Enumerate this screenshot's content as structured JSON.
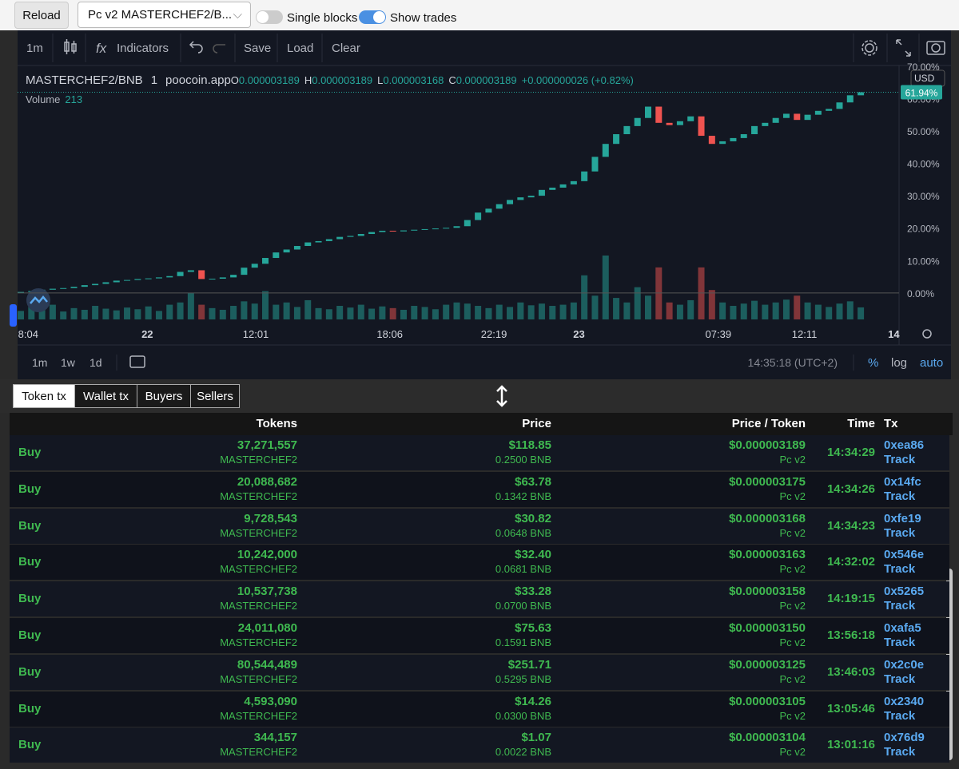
{
  "toolbar": {
    "reload": "Reload",
    "pair_select": "Pc v2 MASTERCHEF2/B...",
    "single_blocks": "Single blocks",
    "show_trades": "Show trades"
  },
  "chart_toolbar": {
    "interval": "1m",
    "indicators": "Indicators",
    "save": "Save",
    "load": "Load",
    "clear": "Clear"
  },
  "chart_data": {
    "type": "candlestick",
    "symbol": "MASTERCHEF2/BNB",
    "interval": "1",
    "source": "poocoin.app",
    "ohlc": [
      {
        "key": "O",
        "value": "0.000003189"
      },
      {
        "key": "H",
        "value": "0.000003189"
      },
      {
        "key": "L",
        "value": "0.000003168"
      },
      {
        "key": "C",
        "value": "0.000003189"
      }
    ],
    "change": "+0.000000026 (+0.82%)",
    "volume_label": "Volume",
    "currency": "USD",
    "last_label": "61.94%",
    "up_color": "#26a69a",
    "down_color": "#ef5350",
    "candles": [
      [
        0,
        0.3
      ],
      [
        0.3,
        0.6
      ],
      [
        0.6,
        1.0
      ],
      [
        1.0,
        1.3
      ],
      [
        1.3,
        1.5
      ],
      [
        1.5,
        1.9
      ],
      [
        1.9,
        2.4
      ],
      [
        2.4,
        2.8
      ],
      [
        2.8,
        3.3
      ],
      [
        3.3,
        3.8
      ],
      [
        3.8,
        4.0
      ],
      [
        4.0,
        4.3
      ],
      [
        4.3,
        4.5
      ],
      [
        4.5,
        4.8
      ],
      [
        4.8,
        5.2
      ],
      [
        5.2,
        6.5
      ],
      [
        6.5,
        7.0
      ],
      [
        7.0,
        4.3
      ],
      [
        4.3,
        4.4
      ],
      [
        4.4,
        4.8
      ],
      [
        4.8,
        5.6
      ],
      [
        5.6,
        7.8
      ],
      [
        7.8,
        9.0
      ],
      [
        9.0,
        10.8
      ],
      [
        10.8,
        12.5
      ],
      [
        12.5,
        13.4
      ],
      [
        13.4,
        14.5
      ],
      [
        14.5,
        15.6
      ],
      [
        15.6,
        16.0
      ],
      [
        16.0,
        16.6
      ],
      [
        16.6,
        17.3
      ],
      [
        17.3,
        17.6
      ],
      [
        17.6,
        18.2
      ],
      [
        18.2,
        18.8
      ],
      [
        18.8,
        19.2
      ],
      [
        19.2,
        19.0
      ],
      [
        19.0,
        19.3
      ],
      [
        19.3,
        19.5
      ],
      [
        19.5,
        19.7
      ],
      [
        19.7,
        19.9
      ],
      [
        19.9,
        20.1
      ],
      [
        20.1,
        20.6
      ],
      [
        20.6,
        22.5
      ],
      [
        22.5,
        24.8
      ],
      [
        24.8,
        26.0
      ],
      [
        26.0,
        27.4
      ],
      [
        27.4,
        28.7
      ],
      [
        28.7,
        29.5
      ],
      [
        29.5,
        30.0
      ],
      [
        30.0,
        31.8
      ],
      [
        31.8,
        32.5
      ],
      [
        32.5,
        33.5
      ],
      [
        33.5,
        34.5
      ],
      [
        34.5,
        37.5
      ],
      [
        37.5,
        42.0
      ],
      [
        42.0,
        46.0
      ],
      [
        46.0,
        49.0
      ],
      [
        49.0,
        51.5
      ],
      [
        51.5,
        54.0
      ],
      [
        54.0,
        57.5
      ],
      [
        57.5,
        52.5
      ],
      [
        52.5,
        51.8
      ],
      [
        51.8,
        53.0
      ],
      [
        53.0,
        54.5
      ],
      [
        54.5,
        48.5
      ],
      [
        48.5,
        46.0
      ],
      [
        46.0,
        46.8
      ],
      [
        46.8,
        47.8
      ],
      [
        47.8,
        49.0
      ],
      [
        49.0,
        51.5
      ],
      [
        51.5,
        52.5
      ],
      [
        52.5,
        54.0
      ],
      [
        54.0,
        55.3
      ],
      [
        55.3,
        53.4
      ],
      [
        53.4,
        55.0
      ],
      [
        55.0,
        56.2
      ],
      [
        56.2,
        56.8
      ],
      [
        56.8,
        58.8
      ],
      [
        58.8,
        61.0
      ],
      [
        61.0,
        61.94
      ]
    ],
    "volume": [
      150,
      220,
      180,
      260,
      140,
      200,
      170,
      240,
      190,
      160,
      210,
      180,
      230,
      150,
      260,
      300,
      470,
      260,
      200,
      170,
      240,
      320,
      280,
      500,
      260,
      300,
      220,
      340,
      200,
      180,
      240,
      210,
      260,
      190,
      230,
      200,
      170,
      240,
      220,
      180,
      260,
      300,
      280,
      240,
      200,
      260,
      220,
      300,
      250,
      280,
      240,
      260,
      300,
      780,
      420,
      1130,
      380,
      300,
      570,
      420,
      920,
      300,
      260,
      340,
      920,
      520,
      300,
      240,
      280,
      330,
      260,
      300,
      350,
      420,
      300,
      260,
      220,
      280,
      320,
      213
    ],
    "xlim": [
      -0.3,
      82.6
    ],
    "ylim": [
      -9.4,
      70.2
    ],
    "xticks": [
      {
        "value": 0.7,
        "label": "8:04"
      },
      {
        "value": 11.9,
        "label": "22"
      },
      {
        "value": 22.1,
        "label": "12:01"
      },
      {
        "value": 34.7,
        "label": "18:06"
      },
      {
        "value": 44.5,
        "label": "22:19"
      },
      {
        "value": 52.5,
        "label": "23"
      },
      {
        "value": 65.6,
        "label": "07:39"
      },
      {
        "value": 73.7,
        "label": "12:11"
      },
      {
        "value": 82.1,
        "label": "14"
      }
    ],
    "yticks": [
      {
        "value": 0,
        "label": "0.00%"
      },
      {
        "value": 10,
        "label": "10.00%"
      },
      {
        "value": 20,
        "label": "20.00%"
      },
      {
        "value": 30,
        "label": "30.00%"
      },
      {
        "value": 40,
        "label": "40.00%"
      },
      {
        "value": 50,
        "label": "50.00%"
      },
      {
        "value": 60,
        "label": "60.00%"
      },
      {
        "value": 70,
        "label": "70.00%"
      }
    ],
    "ranges": [
      "1m",
      "1w",
      "1d"
    ],
    "clock": "14:35:18 (UTC+2)",
    "scale_buttons": [
      "%",
      "log",
      "auto"
    ]
  },
  "tabs": [
    "Token tx",
    "Wallet tx",
    "Buyers",
    "Sellers"
  ],
  "table": {
    "columns": [
      "Tokens",
      "Price",
      "Price / Token",
      "Time",
      "Tx"
    ],
    "rows": [
      [
        "Buy",
        "37,271,557",
        "MASTERCHEF2",
        "$118.85",
        "0.2500 BNB",
        "$0.000003189",
        "Pc v2",
        "14:34:29",
        "0xea86",
        "Track"
      ],
      [
        "Buy",
        "20,088,682",
        "MASTERCHEF2",
        "$63.78",
        "0.1342 BNB",
        "$0.000003175",
        "Pc v2",
        "14:34:26",
        "0x14fc",
        "Track"
      ],
      [
        "Buy",
        "9,728,543",
        "MASTERCHEF2",
        "$30.82",
        "0.0648 BNB",
        "$0.000003168",
        "Pc v2",
        "14:34:23",
        "0xfe19",
        "Track"
      ],
      [
        "Buy",
        "10,242,000",
        "MASTERCHEF2",
        "$32.40",
        "0.0681 BNB",
        "$0.000003163",
        "Pc v2",
        "14:32:02",
        "0x546e",
        "Track"
      ],
      [
        "Buy",
        "10,537,738",
        "MASTERCHEF2",
        "$33.28",
        "0.0700 BNB",
        "$0.000003158",
        "Pc v2",
        "14:19:15",
        "0x5265",
        "Track"
      ],
      [
        "Buy",
        "24,011,080",
        "MASTERCHEF2",
        "$75.63",
        "0.1591 BNB",
        "$0.000003150",
        "Pc v2",
        "13:56:18",
        "0xafa5",
        "Track"
      ],
      [
        "Buy",
        "80,544,489",
        "MASTERCHEF2",
        "$251.71",
        "0.5295 BNB",
        "$0.000003125",
        "Pc v2",
        "13:46:03",
        "0x2c0e",
        "Track"
      ],
      [
        "Buy",
        "4,593,090",
        "MASTERCHEF2",
        "$14.26",
        "0.0300 BNB",
        "$0.000003105",
        "Pc v2",
        "13:05:46",
        "0x2340",
        "Track"
      ],
      [
        "Buy",
        "344,157",
        "MASTERCHEF2",
        "$1.07",
        "0.0022 BNB",
        "$0.000003104",
        "Pc v2",
        "13:01:16",
        "0x76d9",
        "Track"
      ]
    ]
  }
}
